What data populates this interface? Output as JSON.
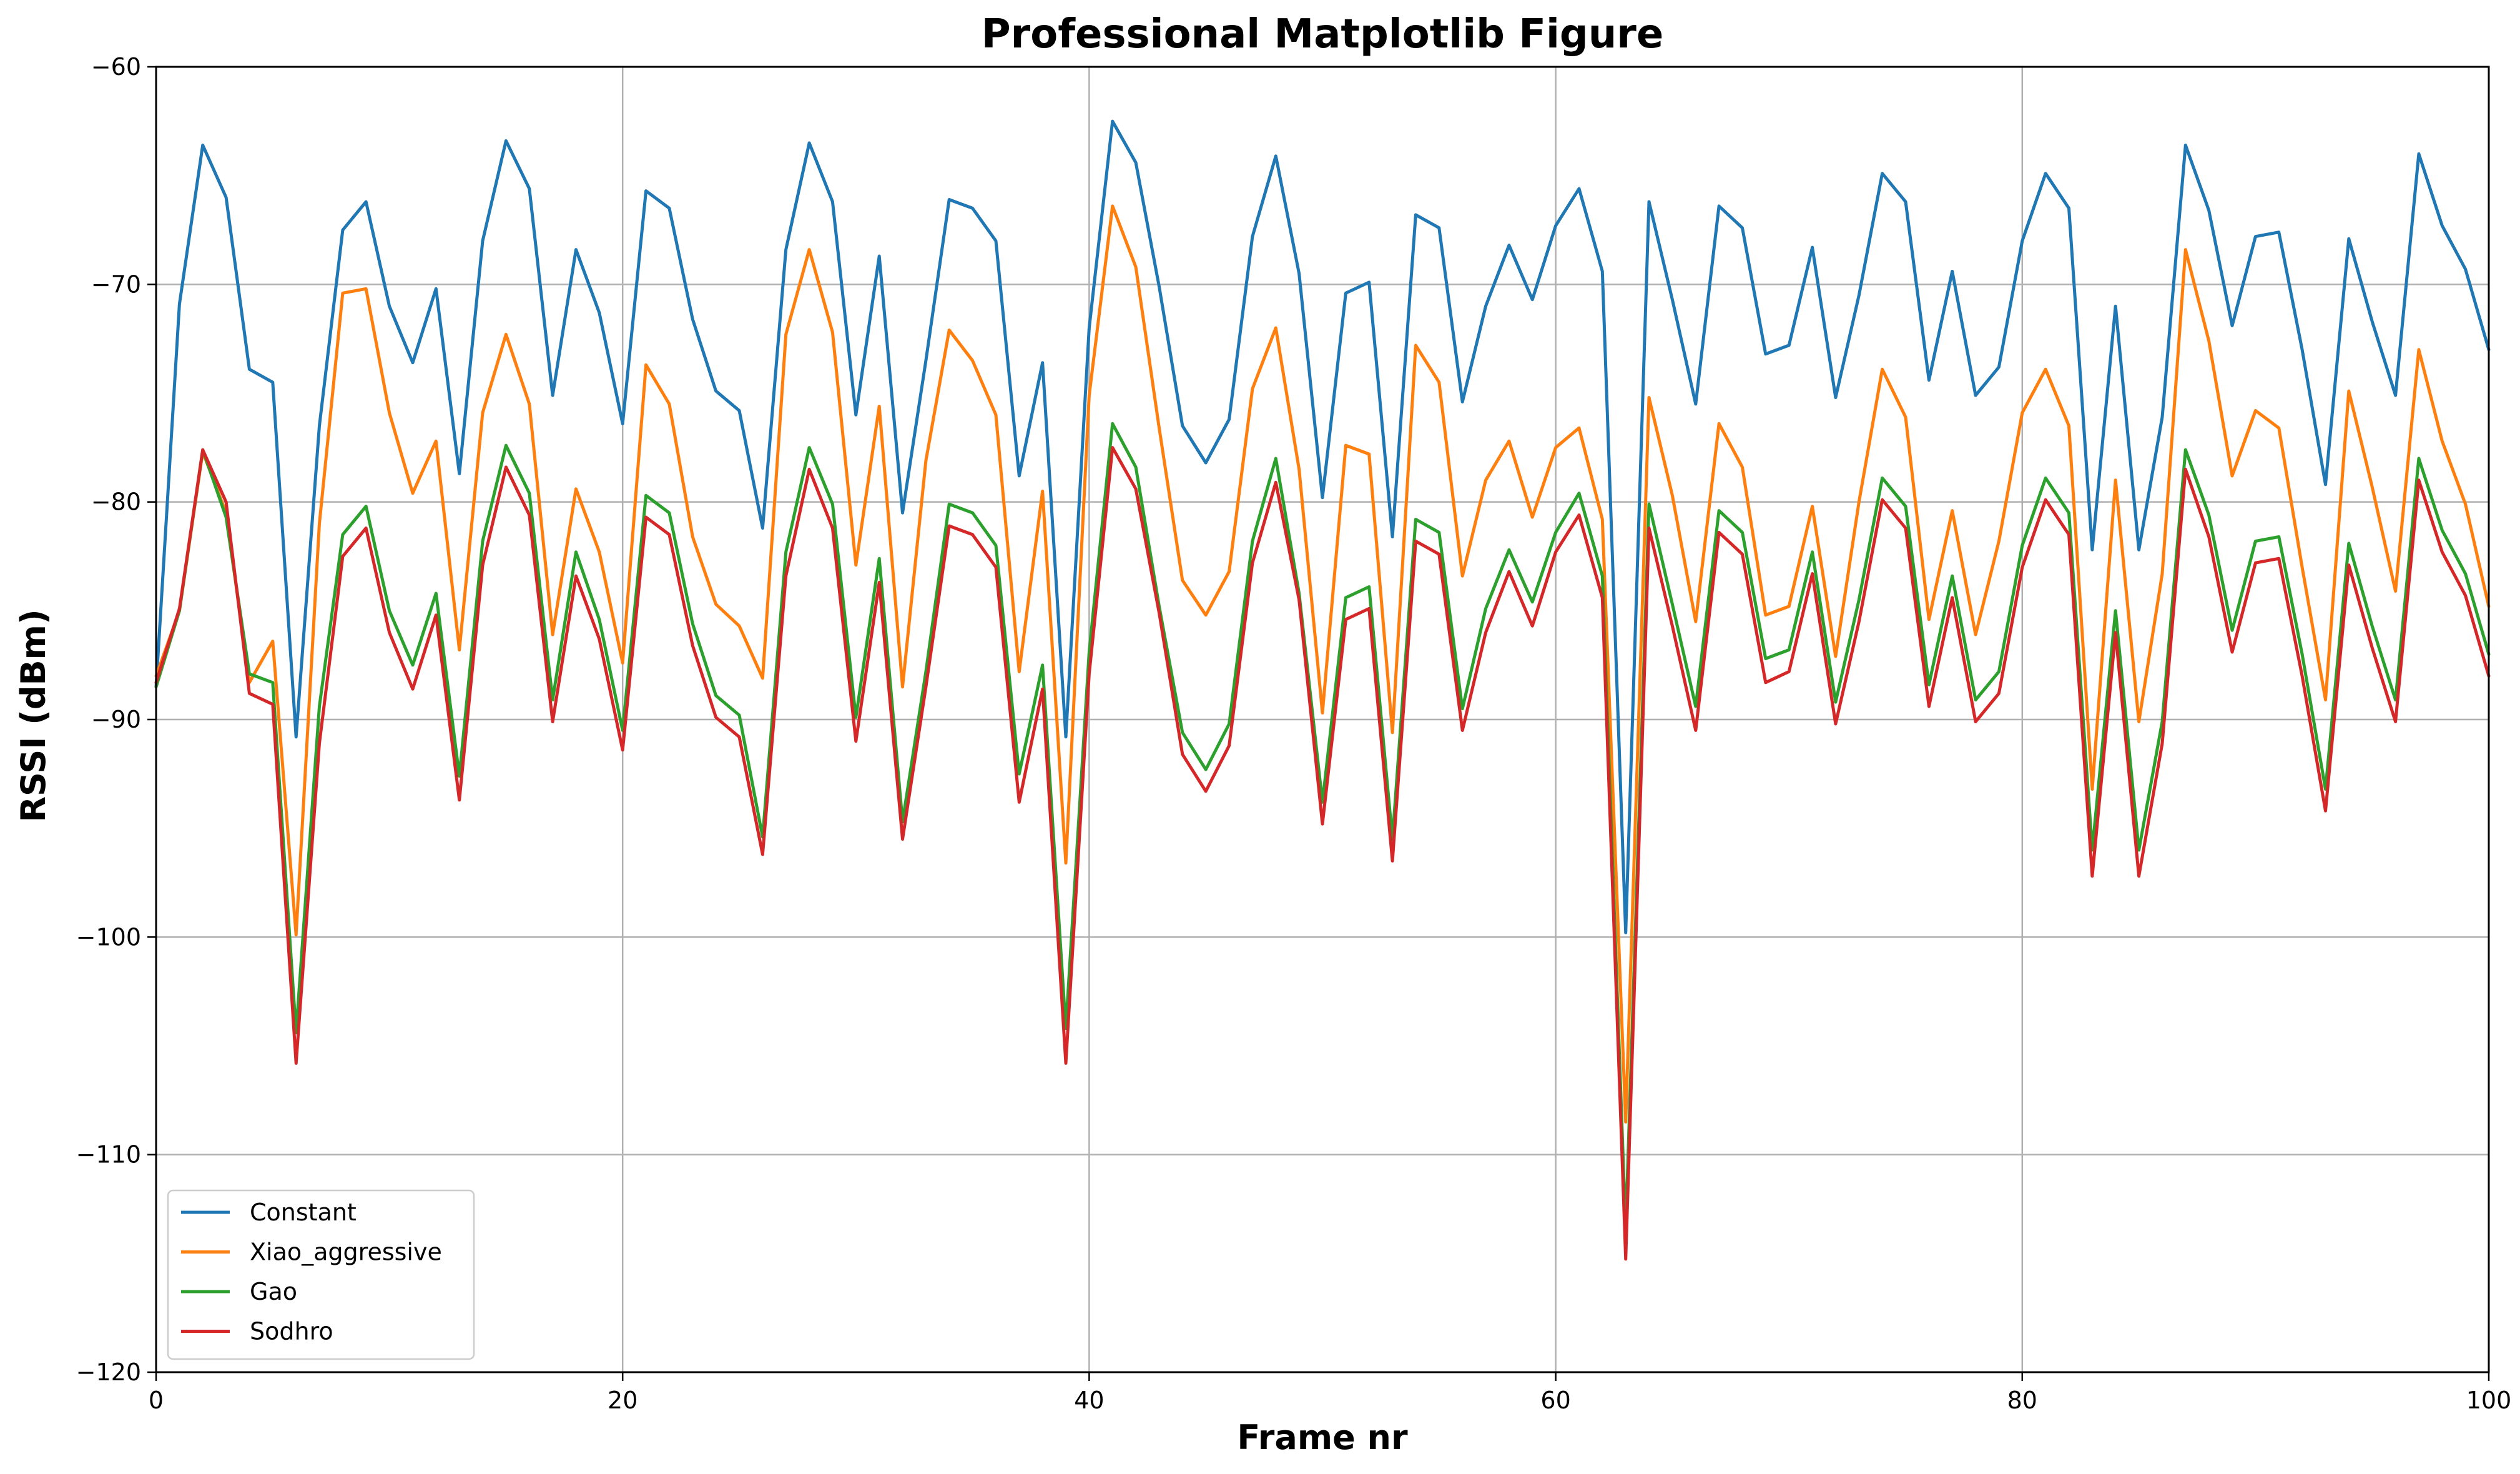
{
  "chart_data": {
    "type": "line",
    "title": "Professional Matplotlib Figure",
    "xlabel": "Frame nr",
    "ylabel": "RSSI (dBm)",
    "xlim": [
      0,
      100
    ],
    "ylim": [
      -120,
      -60
    ],
    "xticks": [
      0,
      20,
      40,
      60,
      80,
      100
    ],
    "yticks": [
      -120,
      -110,
      -100,
      -90,
      -80,
      -70,
      -60
    ],
    "xtick_labels": [
      "0",
      "20",
      "40",
      "60",
      "80",
      "100"
    ],
    "ytick_labels": [
      "−120",
      "−110",
      "−100",
      "−90",
      "−80",
      "−70",
      "−60"
    ],
    "grid": true,
    "legend_position": "lower-left",
    "x": [
      0,
      1,
      2,
      3,
      4,
      5,
      6,
      7,
      8,
      9,
      10,
      11,
      12,
      13,
      14,
      15,
      16,
      17,
      18,
      19,
      20,
      21,
      22,
      23,
      24,
      25,
      26,
      27,
      28,
      29,
      30,
      31,
      32,
      33,
      34,
      35,
      36,
      37,
      38,
      39,
      40,
      41,
      42,
      43,
      44,
      45,
      46,
      47,
      48,
      49,
      50,
      51,
      52,
      53,
      54,
      55,
      56,
      57,
      58,
      59,
      60,
      61,
      62,
      63,
      64,
      65,
      66,
      67,
      68,
      69,
      70,
      71,
      72,
      73,
      74,
      75,
      76,
      77,
      78,
      79,
      80,
      81,
      82,
      83,
      84,
      85,
      86,
      87,
      88,
      89,
      90,
      91,
      92,
      93,
      94,
      95,
      96,
      97,
      98,
      99,
      100
    ],
    "series": [
      {
        "name": "Constant",
        "color": "#1f77b4",
        "values": [
          -88.5,
          -70.9,
          -63.6,
          -66.0,
          -73.9,
          -74.5,
          -90.8,
          -76.5,
          -67.5,
          -66.2,
          -71.0,
          -73.6,
          -70.2,
          -78.7,
          -68.0,
          -63.4,
          -65.6,
          -75.1,
          -68.4,
          -71.3,
          -76.4,
          -65.7,
          -66.5,
          -71.6,
          -74.9,
          -75.8,
          -81.2,
          -68.4,
          -63.5,
          -66.2,
          -76.0,
          -68.7,
          -80.5,
          -73.5,
          -66.1,
          -66.5,
          -68.0,
          -78.8,
          -73.6,
          -90.8,
          -72.0,
          -62.5,
          -64.4,
          -70.1,
          -76.5,
          -78.2,
          -76.2,
          -67.8,
          -64.1,
          -69.5,
          -79.8,
          -70.4,
          -69.9,
          -81.6,
          -66.8,
          -67.4,
          -75.4,
          -71.0,
          -68.2,
          -70.7,
          -67.3,
          -65.6,
          -69.4,
          -99.8,
          -66.2,
          -70.7,
          -75.5,
          -66.4,
          -67.4,
          -73.2,
          -72.8,
          -68.3,
          -75.2,
          -70.5,
          -64.9,
          -66.2,
          -74.4,
          -69.4,
          -75.1,
          -73.8,
          -68.0,
          -64.9,
          -66.5,
          -82.2,
          -71.0,
          -82.2,
          -76.1,
          -63.6,
          -66.6,
          -71.9,
          -67.8,
          -67.6,
          -73.0,
          -79.2,
          -67.9,
          -71.7,
          -75.1,
          -64.0,
          -67.3,
          -69.3,
          -73.0
        ]
      },
      {
        "name": "Xiao_aggressive",
        "color": "#ff7f0e",
        "values": [
          -88.0,
          -85.0,
          -77.7,
          -80.5,
          -88.3,
          -86.4,
          -99.9,
          -81.0,
          -70.4,
          -70.2,
          -75.9,
          -79.6,
          -77.2,
          -86.8,
          -75.9,
          -72.3,
          -75.5,
          -86.1,
          -79.4,
          -82.3,
          -87.4,
          -73.7,
          -75.5,
          -81.6,
          -84.7,
          -85.7,
          -88.1,
          -72.3,
          -68.4,
          -72.2,
          -82.9,
          -75.6,
          -88.5,
          -78.1,
          -72.1,
          -73.5,
          -76.0,
          -87.8,
          -79.5,
          -96.6,
          -75.1,
          -66.4,
          -69.2,
          -76.6,
          -83.6,
          -85.2,
          -83.2,
          -74.8,
          -72.0,
          -78.5,
          -89.7,
          -77.4,
          -77.8,
          -90.6,
          -72.8,
          -74.5,
          -83.4,
          -79.0,
          -77.2,
          -80.7,
          -77.5,
          -76.6,
          -80.8,
          -108.5,
          -75.2,
          -79.7,
          -85.5,
          -76.4,
          -78.4,
          -85.2,
          -84.8,
          -80.2,
          -87.1,
          -80.0,
          -73.9,
          -76.1,
          -85.4,
          -80.4,
          -86.1,
          -81.8,
          -75.9,
          -73.9,
          -76.5,
          -93.2,
          -79.0,
          -90.1,
          -83.3,
          -68.4,
          -72.6,
          -78.8,
          -75.8,
          -76.6,
          -83.0,
          -89.1,
          -74.9,
          -79.3,
          -84.1,
          -73.0,
          -77.2,
          -80.1,
          -84.8
        ]
      },
      {
        "name": "Gao",
        "color": "#2ca02c",
        "values": [
          -88.5,
          -85.0,
          -77.6,
          -80.7,
          -87.9,
          -88.3,
          -104.4,
          -89.4,
          -81.5,
          -80.2,
          -85.0,
          -87.5,
          -84.2,
          -92.6,
          -81.8,
          -77.4,
          -79.6,
          -89.1,
          -82.3,
          -85.4,
          -90.5,
          -79.7,
          -80.5,
          -85.6,
          -88.9,
          -89.8,
          -95.4,
          -82.3,
          -77.5,
          -80.1,
          -89.9,
          -82.6,
          -94.7,
          -87.8,
          -80.1,
          -80.5,
          -82.0,
          -92.5,
          -87.5,
          -104.2,
          -86.9,
          -76.4,
          -78.4,
          -84.8,
          -90.6,
          -92.3,
          -90.2,
          -81.8,
          -78.0,
          -84.2,
          -93.8,
          -84.4,
          -83.9,
          -95.5,
          -80.8,
          -81.4,
          -89.5,
          -84.9,
          -82.2,
          -84.6,
          -81.4,
          -79.6,
          -83.4,
          -113.5,
          -80.1,
          -84.7,
          -89.4,
          -80.4,
          -81.4,
          -87.2,
          -86.8,
          -82.3,
          -89.2,
          -84.5,
          -78.9,
          -80.2,
          -88.4,
          -83.4,
          -89.1,
          -87.8,
          -82.0,
          -78.9,
          -80.5,
          -96.0,
          -85.0,
          -96.0,
          -90.1,
          -77.6,
          -80.6,
          -85.9,
          -81.8,
          -81.6,
          -87.0,
          -93.2,
          -81.9,
          -85.7,
          -89.1,
          -78.0,
          -81.3,
          -83.3,
          -87.0
        ]
      },
      {
        "name": "Sodhro",
        "color": "#d62728",
        "values": [
          -88.3,
          -84.9,
          -77.6,
          -80.0,
          -88.8,
          -89.3,
          -105.8,
          -91.1,
          -82.5,
          -81.2,
          -86.0,
          -88.6,
          -85.2,
          -93.7,
          -82.9,
          -78.4,
          -80.6,
          -90.1,
          -83.4,
          -86.3,
          -91.4,
          -80.7,
          -81.5,
          -86.6,
          -89.9,
          -90.8,
          -96.2,
          -83.4,
          -78.5,
          -81.2,
          -91.0,
          -83.7,
          -95.5,
          -88.5,
          -81.1,
          -81.5,
          -83.0,
          -93.8,
          -88.6,
          -105.8,
          -87.9,
          -77.5,
          -79.4,
          -85.1,
          -91.6,
          -93.3,
          -91.2,
          -82.8,
          -79.1,
          -84.5,
          -94.8,
          -85.4,
          -84.9,
          -96.5,
          -81.8,
          -82.4,
          -90.5,
          -86.0,
          -83.2,
          -85.7,
          -82.3,
          -80.6,
          -84.4,
          -114.8,
          -81.2,
          -85.7,
          -90.5,
          -81.4,
          -82.4,
          -88.3,
          -87.8,
          -83.3,
          -90.2,
          -85.5,
          -79.9,
          -81.2,
          -89.4,
          -84.4,
          -90.1,
          -88.8,
          -83.0,
          -79.9,
          -81.5,
          -97.2,
          -86.0,
          -97.2,
          -91.1,
          -78.5,
          -81.6,
          -86.9,
          -82.8,
          -82.6,
          -88.0,
          -94.2,
          -82.9,
          -86.7,
          -90.1,
          -79.0,
          -82.3,
          -84.3,
          -88.0
        ]
      }
    ]
  }
}
